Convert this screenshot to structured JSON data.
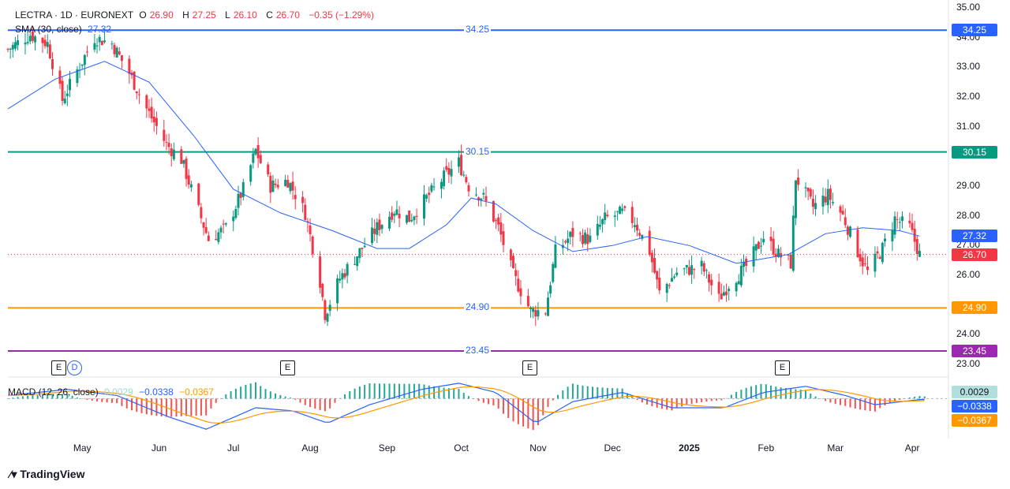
{
  "header": {
    "symbol": "LECTRA · 1D · EURONEXT",
    "o_label": "O",
    "o_value": "26.90",
    "h_label": "H",
    "h_value": "27.25",
    "l_label": "L",
    "l_value": "26.10",
    "c_label": "C",
    "c_value": "26.70",
    "change": "−0.35 (−1.29%)",
    "sma_label": "SMA (30, close)",
    "sma_value": "27.32",
    "macd_label": "MACD (12, 26, close)",
    "macd_hist": "0.0029",
    "macd_line": "−0.0338",
    "macd_signal": "−0.0367"
  },
  "events": [
    "E",
    "D",
    "E",
    "E",
    "E"
  ],
  "brand": "TradingView",
  "colors": {
    "up": "#089981",
    "down": "#f23645",
    "sma": "#2962ff",
    "line_3425": "#2962ff",
    "line_3015": "#089981",
    "line_2490": "#ff9800",
    "line_2345": "#9c27b0",
    "macd": "#2962ff",
    "signal": "#ff9800",
    "price": "#f23645"
  },
  "chart_data": {
    "type": "candlestick",
    "x_range": [
      "2024-04-01",
      "2025-04-15"
    ],
    "ylim": [
      23.0,
      35.0
    ],
    "yticks": [
      "35.00",
      "34.00",
      "33.00",
      "32.00",
      "31.00",
      "30.00",
      "29.00",
      "28.00",
      "27.00",
      "26.00",
      "24.00",
      "23.00"
    ],
    "xticks": [
      "May",
      "Jun",
      "Jul",
      "Aug",
      "Sep",
      "Oct",
      "Nov",
      "Dec",
      "2025",
      "Feb",
      "Mar",
      "Apr"
    ],
    "xtick_dates": [
      "2024-05-01",
      "2024-06-01",
      "2024-07-01",
      "2024-08-01",
      "2024-09-01",
      "2024-10-01",
      "2024-11-01",
      "2024-12-01",
      "2025-01-01",
      "2025-02-01",
      "2025-03-01",
      "2025-04-01"
    ],
    "event_dates": [
      "2024-04-26",
      "2024-04-29",
      "2024-07-25",
      "2024-10-29",
      "2025-02-13"
    ],
    "horizontal_lines": [
      {
        "value": 34.25,
        "label": "34.25",
        "color": "#2962ff"
      },
      {
        "value": 30.15,
        "label": "30.15",
        "color": "#089981"
      },
      {
        "value": 24.9,
        "label": "24.90",
        "color": "#ff9800"
      },
      {
        "value": 23.45,
        "label": "23.45",
        "color": "#9c27b0"
      }
    ],
    "last_close": {
      "value": 26.7,
      "label": "26.70"
    },
    "sma_last": {
      "value": 27.32,
      "label": "27.32"
    },
    "close_anchors": [
      [
        "2024-04-01",
        33.6
      ],
      [
        "2024-04-10",
        34.1
      ],
      [
        "2024-04-17",
        33.8
      ],
      [
        "2024-04-23",
        31.9
      ],
      [
        "2024-04-29",
        32.9
      ],
      [
        "2024-05-06",
        34.0
      ],
      [
        "2024-05-13",
        33.8
      ],
      [
        "2024-05-20",
        32.8
      ],
      [
        "2024-05-27",
        31.6
      ],
      [
        "2024-06-04",
        30.4
      ],
      [
        "2024-06-10",
        29.9
      ],
      [
        "2024-06-14",
        28.9
      ],
      [
        "2024-06-21",
        27.2
      ],
      [
        "2024-06-28",
        27.6
      ],
      [
        "2024-07-05",
        28.9
      ],
      [
        "2024-07-10",
        30.2
      ],
      [
        "2024-07-16",
        29.0
      ],
      [
        "2024-07-23",
        29.2
      ],
      [
        "2024-07-30",
        28.1
      ],
      [
        "2024-08-05",
        25.8
      ],
      [
        "2024-08-07",
        24.7
      ],
      [
        "2024-08-13",
        25.9
      ],
      [
        "2024-08-21",
        26.8
      ],
      [
        "2024-08-28",
        27.6
      ],
      [
        "2024-09-04",
        28.2
      ],
      [
        "2024-09-10",
        27.9
      ],
      [
        "2024-09-17",
        28.6
      ],
      [
        "2024-09-24",
        29.3
      ],
      [
        "2024-09-30",
        29.8
      ],
      [
        "2024-10-04",
        29.0
      ],
      [
        "2024-10-10",
        28.6
      ],
      [
        "2024-10-16",
        27.6
      ],
      [
        "2024-10-22",
        26.0
      ],
      [
        "2024-10-29",
        24.8
      ],
      [
        "2024-11-04",
        24.8
      ],
      [
        "2024-11-08",
        26.8
      ],
      [
        "2024-11-15",
        27.4
      ],
      [
        "2024-11-22",
        27.2
      ],
      [
        "2024-11-28",
        27.9
      ],
      [
        "2024-12-05",
        28.1
      ],
      [
        "2024-12-10",
        27.8
      ],
      [
        "2024-12-16",
        26.8
      ],
      [
        "2024-12-20",
        25.4
      ],
      [
        "2024-12-27",
        26.1
      ],
      [
        "2025-01-06",
        26.3
      ],
      [
        "2025-01-13",
        25.2
      ],
      [
        "2025-01-17",
        25.7
      ],
      [
        "2025-01-24",
        26.3
      ],
      [
        "2025-01-31",
        27.3
      ],
      [
        "2025-02-06",
        26.7
      ],
      [
        "2025-02-11",
        26.4
      ],
      [
        "2025-02-13",
        29.3
      ],
      [
        "2025-02-20",
        28.3
      ],
      [
        "2025-02-26",
        28.7
      ],
      [
        "2025-03-04",
        28.0
      ],
      [
        "2025-03-10",
        26.8
      ],
      [
        "2025-03-14",
        26.1
      ],
      [
        "2025-03-20",
        26.9
      ],
      [
        "2025-03-25",
        27.9
      ],
      [
        "2025-03-31",
        27.6
      ],
      [
        "2025-04-04",
        26.7
      ]
    ],
    "sma_anchors": [
      [
        "2024-04-01",
        31.6
      ],
      [
        "2024-04-20",
        32.6
      ],
      [
        "2024-05-10",
        33.2
      ],
      [
        "2024-05-28",
        32.5
      ],
      [
        "2024-06-15",
        30.7
      ],
      [
        "2024-07-01",
        28.9
      ],
      [
        "2024-07-20",
        28.1
      ],
      [
        "2024-08-10",
        27.5
      ],
      [
        "2024-08-28",
        26.9
      ],
      [
        "2024-09-10",
        26.9
      ],
      [
        "2024-09-25",
        27.7
      ],
      [
        "2024-10-05",
        28.6
      ],
      [
        "2024-10-15",
        28.4
      ],
      [
        "2024-10-30",
        27.5
      ],
      [
        "2024-11-15",
        26.8
      ],
      [
        "2024-12-01",
        27.0
      ],
      [
        "2024-12-15",
        27.3
      ],
      [
        "2025-01-01",
        27.0
      ],
      [
        "2025-01-20",
        26.4
      ],
      [
        "2025-02-10",
        26.7
      ],
      [
        "2025-02-25",
        27.4
      ],
      [
        "2025-03-12",
        27.6
      ],
      [
        "2025-03-27",
        27.5
      ],
      [
        "2025-04-04",
        27.32
      ]
    ],
    "macd_last": {
      "histogram": 0.0029,
      "macd": -0.0338,
      "signal": -0.0367
    },
    "macd_anchors": [
      [
        "2024-04-01",
        0.1
      ],
      [
        "2024-04-25",
        0.3
      ],
      [
        "2024-05-15",
        0.1
      ],
      [
        "2024-06-05",
        -0.6
      ],
      [
        "2024-06-20",
        -1.0
      ],
      [
        "2024-07-10",
        -0.3
      ],
      [
        "2024-07-25",
        -0.4
      ],
      [
        "2024-08-08",
        -0.8
      ],
      [
        "2024-08-25",
        -0.2
      ],
      [
        "2024-09-15",
        0.3
      ],
      [
        "2024-09-30",
        0.5
      ],
      [
        "2024-10-15",
        0.2
      ],
      [
        "2024-10-31",
        -0.8
      ],
      [
        "2024-11-15",
        -0.1
      ],
      [
        "2024-12-05",
        0.2
      ],
      [
        "2024-12-25",
        -0.3
      ],
      [
        "2025-01-15",
        -0.3
      ],
      [
        "2025-01-31",
        0.2
      ],
      [
        "2025-02-17",
        0.4
      ],
      [
        "2025-03-05",
        0.1
      ],
      [
        "2025-03-17",
        -0.2
      ],
      [
        "2025-04-04",
        -0.0338
      ]
    ]
  }
}
